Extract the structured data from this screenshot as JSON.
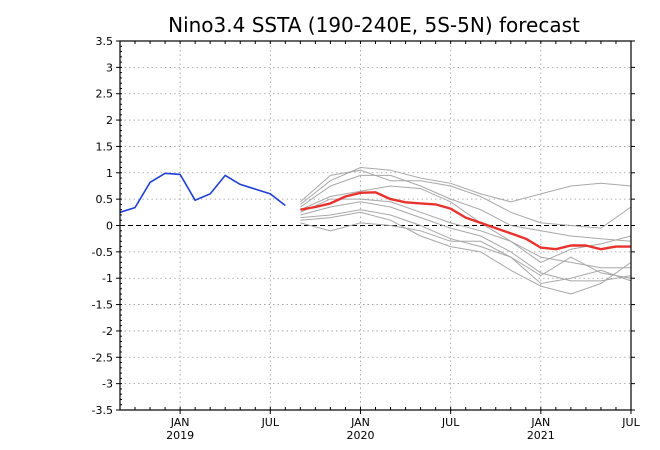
{
  "chart_data": {
    "type": "line",
    "title": "Nino3.4 SSTA (190-240E, 5S-5N) forecast",
    "xlabel": "",
    "ylabel": "",
    "ylim": [
      -3.5,
      3.5
    ],
    "yticks": [
      -3.5,
      -3,
      -2.5,
      -2,
      -1.5,
      -1,
      -0.5,
      0,
      0.5,
      1,
      1.5,
      2,
      2.5,
      3,
      3.5
    ],
    "ytick_labels": [
      "-3.5",
      "-3",
      "-2.5",
      "-2",
      "-1.5",
      "-1",
      "-0.5",
      "0",
      "0.5",
      "1",
      "1.5",
      "2",
      "2.5",
      "3",
      "3.5"
    ],
    "x_unit": "months since Sep 2018",
    "xlim": [
      0,
      34
    ],
    "xticks": [
      {
        "x": 4,
        "label": "JAN",
        "year": "2019"
      },
      {
        "x": 10,
        "label": "JUL",
        "year": ""
      },
      {
        "x": 16,
        "label": "JAN",
        "year": "2020"
      },
      {
        "x": 22,
        "label": "JUL",
        "year": ""
      },
      {
        "x": 28,
        "label": "JAN",
        "year": "2021"
      },
      {
        "x": 34,
        "label": "JUL",
        "year": ""
      }
    ],
    "grid": true,
    "zero_line": true,
    "colors": {
      "observed": "#1f3fd6",
      "mean": "#e8322d",
      "member": "#a8a8a8"
    },
    "series": [
      {
        "role": "observed",
        "x": [
          0,
          1,
          2,
          3,
          4,
          5,
          6,
          7,
          8,
          9,
          10,
          11
        ],
        "values": [
          0.25,
          0.34,
          0.82,
          0.99,
          0.97,
          0.48,
          0.6,
          0.95,
          0.78,
          0.69,
          0.6,
          0.38
        ]
      },
      {
        "role": "mean",
        "x": [
          12,
          13,
          14,
          15,
          16,
          17,
          18,
          19,
          20,
          21,
          22,
          23,
          24,
          25,
          26,
          27,
          28,
          29,
          30,
          31,
          32,
          33,
          34
        ],
        "values": [
          0.3,
          0.35,
          0.42,
          0.55,
          0.62,
          0.63,
          0.5,
          0.44,
          0.42,
          0.4,
          0.32,
          0.15,
          0.05,
          -0.05,
          -0.15,
          -0.25,
          -0.42,
          -0.45,
          -0.38,
          -0.38,
          -0.45,
          -0.4,
          -0.4
        ]
      },
      {
        "role": "member",
        "x": [
          12,
          14,
          16,
          18,
          20,
          22,
          24,
          26,
          28,
          30,
          32,
          34
        ],
        "values": [
          0.4,
          0.85,
          1.1,
          1.05,
          0.9,
          0.8,
          0.6,
          0.45,
          0.6,
          0.75,
          0.8,
          0.75
        ]
      },
      {
        "role": "member",
        "x": [
          12,
          14,
          16,
          18,
          20,
          22,
          24,
          26,
          28,
          30,
          32,
          34
        ],
        "values": [
          0.45,
          0.95,
          1.05,
          0.85,
          0.85,
          0.75,
          0.55,
          0.25,
          0.05,
          0.0,
          -0.05,
          0.35
        ]
      },
      {
        "role": "member",
        "x": [
          12,
          14,
          16,
          18,
          20,
          22,
          24,
          26,
          28,
          30,
          32,
          34
        ],
        "values": [
          0.35,
          0.75,
          0.95,
          0.95,
          0.75,
          0.5,
          0.3,
          0.0,
          -0.1,
          -0.2,
          -0.25,
          -0.3
        ]
      },
      {
        "role": "member",
        "x": [
          12,
          14,
          16,
          18,
          20,
          22,
          24,
          26,
          28,
          30,
          32,
          34
        ],
        "values": [
          0.3,
          0.55,
          0.65,
          0.75,
          0.7,
          0.45,
          0.05,
          -0.3,
          -0.7,
          -0.45,
          -0.35,
          -0.2
        ]
      },
      {
        "role": "member",
        "x": [
          12,
          14,
          16,
          18,
          20,
          22,
          24,
          26,
          28,
          30,
          32,
          34
        ],
        "values": [
          0.25,
          0.5,
          0.5,
          0.45,
          0.25,
          0.05,
          -0.1,
          -0.3,
          -0.6,
          -0.7,
          -0.8,
          -0.8
        ]
      },
      {
        "role": "member",
        "x": [
          12,
          14,
          16,
          18,
          20,
          22,
          24,
          26,
          28,
          30,
          32,
          34
        ],
        "values": [
          0.2,
          0.35,
          0.45,
          0.35,
          0.15,
          -0.05,
          -0.2,
          -0.5,
          -0.9,
          -1.05,
          -1.05,
          -0.95
        ]
      },
      {
        "role": "member",
        "x": [
          12,
          14,
          16,
          18,
          20,
          22,
          24,
          26,
          28,
          30,
          32,
          34
        ],
        "values": [
          0.15,
          0.2,
          0.3,
          0.2,
          0.0,
          -0.25,
          -0.4,
          -0.6,
          -1.1,
          -1.0,
          -0.85,
          -1.05
        ]
      },
      {
        "role": "member",
        "x": [
          12,
          14,
          16,
          18,
          20,
          22,
          24,
          26,
          28,
          30,
          32,
          34
        ],
        "values": [
          0.1,
          0.15,
          0.25,
          0.1,
          -0.2,
          -0.4,
          -0.5,
          -0.85,
          -1.15,
          -1.3,
          -1.1,
          -0.7
        ]
      },
      {
        "role": "member",
        "x": [
          12,
          14,
          16,
          18,
          20,
          22,
          24,
          26,
          28,
          30,
          32,
          34
        ],
        "values": [
          0.05,
          -0.1,
          0.05,
          0.0,
          -0.1,
          -0.3,
          -0.3,
          -0.6,
          -0.95,
          -0.6,
          -0.9,
          -1.0
        ]
      }
    ]
  }
}
